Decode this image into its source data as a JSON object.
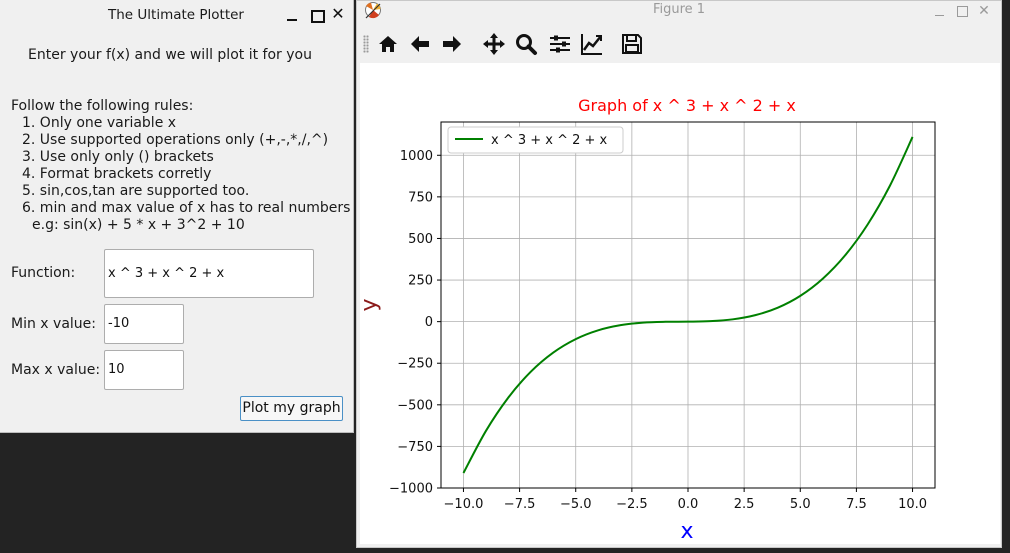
{
  "plotter": {
    "title": "The Ultimate Plotter",
    "intro": "Enter your f(x) and we will plot it for you",
    "rules_heading": "Follow the following rules:",
    "rules": [
      "1. Only one variable x",
      "2. Use supported operations only (+,-,*,/,^)",
      "3. Use only only () brackets",
      "4. Format brackets corretly",
      "5. sin,cos,tan are supported too.",
      "6. min and max value of x has to real numbers"
    ],
    "example": "e.g: sin(x) + 5 * x + 3^2  + 10",
    "function_label": "Function:",
    "function_value": "x ^ 3 + x ^ 2 + x",
    "min_label": "Min x value:",
    "min_value": "-10",
    "max_label": "Max x value:",
    "max_value": "10",
    "plot_button": "Plot my graph",
    "window_controls": {
      "minimize_icon": "minimize-icon",
      "maximize_icon": "maximize-icon",
      "close_glyph": "✕"
    }
  },
  "figure": {
    "title": "Figure 1",
    "close_glyph": "✕",
    "toolbar": [
      {
        "icon": "home-icon"
      },
      {
        "icon": "back-arrow-icon"
      },
      {
        "icon": "forward-arrow-icon"
      },
      {
        "icon": "pan-icon"
      },
      {
        "icon": "zoom-icon"
      },
      {
        "icon": "subplots-icon"
      },
      {
        "icon": "edit-axes-icon"
      },
      {
        "icon": "save-icon"
      }
    ]
  },
  "colors": {
    "curve": "#008000",
    "chart_title": "#ff0000",
    "xlabel": "#0000ff",
    "ylabel": "#8b1a1a"
  },
  "chart_data": {
    "type": "line",
    "title": "Graph of x ^ 3 + x ^ 2 + x",
    "xlabel": "x",
    "ylabel": "y",
    "xlim": [
      -11,
      11
    ],
    "ylim": [
      -1000,
      1200
    ],
    "xticks": [
      -10.0,
      -7.5,
      -5.0,
      -2.5,
      0.0,
      2.5,
      5.0,
      7.5,
      10.0
    ],
    "xtick_labels": [
      "−10.0",
      "−7.5",
      "−5.0",
      "−2.5",
      "0.0",
      "2.5",
      "5.0",
      "7.5",
      "10.0"
    ],
    "yticks": [
      -1000,
      -750,
      -500,
      -250,
      0,
      250,
      500,
      750,
      1000
    ],
    "ytick_labels": [
      "−1000",
      "−750",
      "−500",
      "−250",
      "0",
      "250",
      "500",
      "750",
      "1000"
    ],
    "grid": true,
    "legend": "top-left",
    "series": [
      {
        "name": "x ^ 3 + x ^ 2 + x",
        "x": [
          -10,
          -9,
          -8,
          -7,
          -6,
          -5,
          -4,
          -3,
          -2,
          -1,
          0,
          1,
          2,
          3,
          4,
          5,
          6,
          7,
          8,
          9,
          10
        ],
        "y": [
          -910,
          -657,
          -456,
          -301,
          -186,
          -105,
          -52,
          -21,
          -6,
          -1,
          0,
          3,
          14,
          39,
          84,
          155,
          258,
          399,
          584,
          819,
          1110
        ]
      }
    ]
  }
}
